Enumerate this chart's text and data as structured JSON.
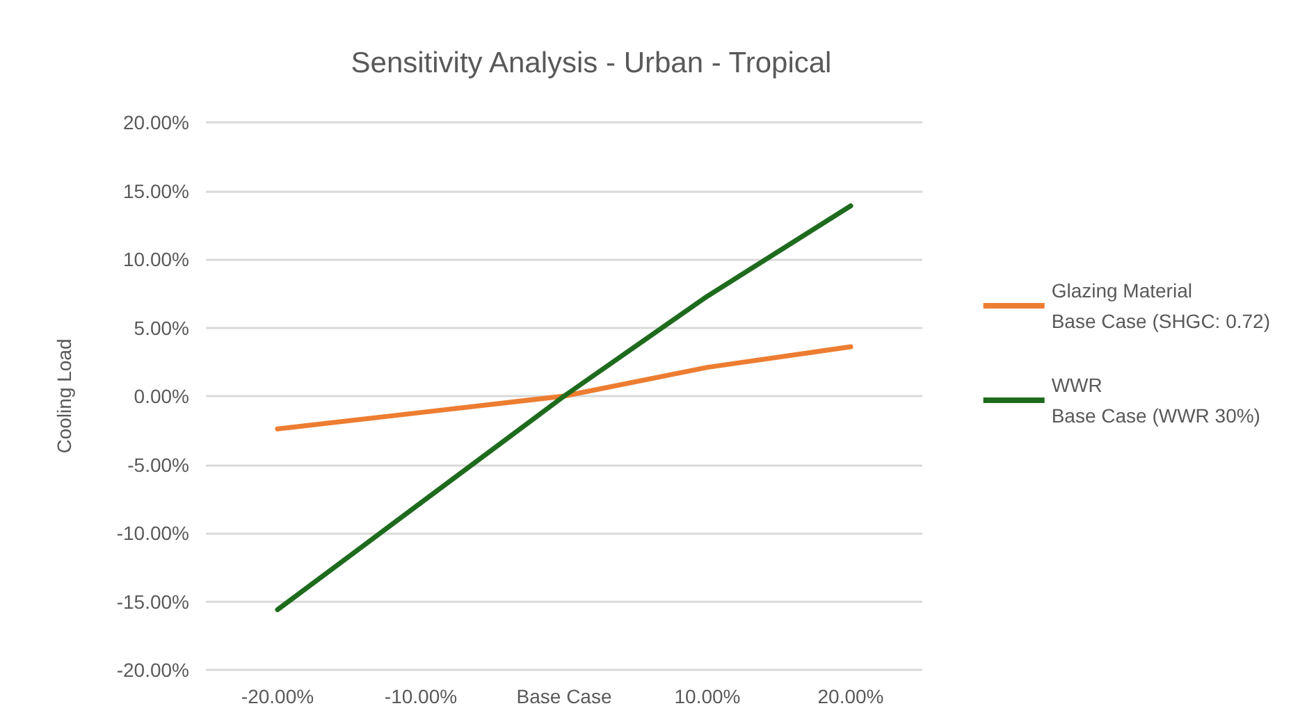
{
  "chart_data": {
    "type": "line",
    "title": "Sensitivity Analysis - Urban - Tropical",
    "ylabel": "Cooling Load",
    "categories": [
      "-20.00%",
      "-10.00%",
      "Base Case",
      "10.00%",
      "20.00%"
    ],
    "series": [
      {
        "name": "Glazing Material\nBase Case (SHGC: 0.72)",
        "color": "#ed7d31",
        "values": [
          -2.4,
          -1.2,
          0,
          2.1,
          3.6
        ]
      },
      {
        "name": "WWR\nBase Case (WWR 30%)",
        "color": "#1e6b1e",
        "values": [
          -15.6,
          -7.8,
          0,
          7.3,
          13.9
        ]
      }
    ],
    "ylim": [
      -20,
      20
    ],
    "yticks": [
      {
        "value": -20,
        "label": "-20.00%"
      },
      {
        "value": -15,
        "label": "-15.00%"
      },
      {
        "value": -10,
        "label": "-10.00%"
      },
      {
        "value": -5,
        "label": "-5.00%"
      },
      {
        "value": 0,
        "label": "0.00%"
      },
      {
        "value": 5,
        "label": "5.00%"
      },
      {
        "value": 10,
        "label": "10.00%"
      },
      {
        "value": 15,
        "label": "15.00%"
      },
      {
        "value": 20,
        "label": "20.00%"
      }
    ],
    "grid": "y",
    "legend": "right",
    "marker": "none",
    "line_style": "solid"
  }
}
